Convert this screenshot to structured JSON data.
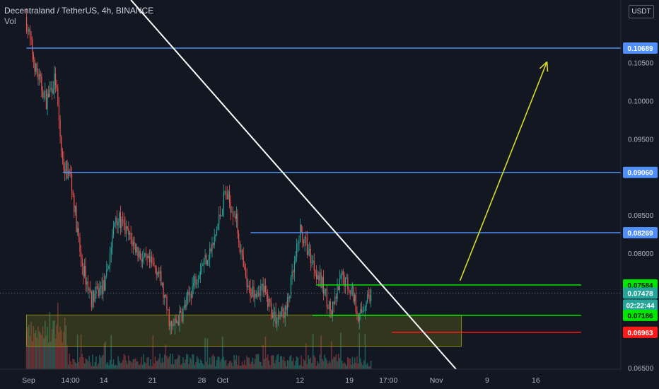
{
  "header": {
    "symbol": "Decentraland / TetherUS, 4h, BINANCE",
    "indicator": "Vol"
  },
  "currency": "USDT",
  "colors": {
    "background": "#131722",
    "up": "#26a69a",
    "down": "#ef5350",
    "blue_level": "#4f8ff7",
    "green_level": "#00e600",
    "red_level": "#ff1a1a",
    "trendline": "#ffffff",
    "projection": "#d9d926",
    "zone_fill": "#8a8a1a",
    "axis_text": "#b2b5be"
  },
  "chart_data": {
    "type": "candlestick",
    "title": "Decentraland / TetherUS, 4h, BINANCE",
    "ylim": [
      0.0622,
      0.1132
    ],
    "xlim": [
      "Sep 1",
      "Nov 20"
    ],
    "x_ticks": [
      {
        "label": "Sep",
        "day": 0.3
      },
      {
        "label": "14:00",
        "day": 6.3
      },
      {
        "label": "14",
        "day": 11.1
      },
      {
        "label": "21",
        "day": 18.1
      },
      {
        "label": "28",
        "day": 25.2
      },
      {
        "label": "Oct",
        "day": 28.2
      },
      {
        "label": "12",
        "day": 39.3
      },
      {
        "label": "19",
        "day": 46.4
      },
      {
        "label": "17:00",
        "day": 52.0
      },
      {
        "label": "Nov",
        "day": 58.9
      },
      {
        "label": "9",
        "day": 66.2
      },
      {
        "label": "16",
        "day": 73.2
      }
    ],
    "y_ticks": [
      0.065,
      0.08,
      0.085,
      0.095,
      0.1,
      0.105
    ],
    "price_levels": [
      {
        "label": "0.10689",
        "value": 0.10689,
        "color": "blue",
        "from_day": 0
      },
      {
        "label": "0.09060",
        "value": 0.0906,
        "color": "blue",
        "from_day": 5.2
      },
      {
        "label": "0.08269",
        "value": 0.08269,
        "color": "blue",
        "from_day": 32.2
      },
      {
        "label": "0.07584",
        "value": 0.07584,
        "color": "green",
        "from_day": 41.6,
        "to_day": 79.7
      },
      {
        "label": "0.07478",
        "value": 0.07478,
        "color": "teal",
        "marker": "last-price"
      },
      {
        "label": "02:22:44",
        "value": 0.0732,
        "color": "teal",
        "marker": "countdown"
      },
      {
        "label": "0.07186",
        "value": 0.07186,
        "color": "green",
        "from_day": 41.1,
        "to_day": 79.7
      },
      {
        "label": "0.06963",
        "value": 0.06963,
        "color": "red",
        "from_day": 52.5,
        "to_day": 79.7
      }
    ],
    "support_zone": {
      "y_top": 0.0719,
      "y_bottom": 0.0678,
      "from_day": 0,
      "to_day": 62.5
    },
    "trendline": {
      "from": {
        "day": 15.0,
        "y": 0.1132
      },
      "to": {
        "day": 62.5,
        "y": 0.064
      }
    },
    "projection_arrow": {
      "from": {
        "day": 62.3,
        "y": 0.0764
      },
      "to": {
        "day": 74.8,
        "y": 0.1051
      }
    },
    "price_anchors": [
      {
        "day": 0,
        "y": 0.111
      },
      {
        "day": 1.5,
        "y": 0.104
      },
      {
        "day": 3,
        "y": 0.1
      },
      {
        "day": 4.3,
        "y": 0.103
      },
      {
        "day": 5.3,
        "y": 0.092
      },
      {
        "day": 6.5,
        "y": 0.09
      },
      {
        "day": 8,
        "y": 0.079
      },
      {
        "day": 9.5,
        "y": 0.074
      },
      {
        "day": 11.5,
        "y": 0.076
      },
      {
        "day": 13,
        "y": 0.085
      },
      {
        "day": 15,
        "y": 0.082
      },
      {
        "day": 17,
        "y": 0.079
      },
      {
        "day": 19,
        "y": 0.078
      },
      {
        "day": 21,
        "y": 0.07
      },
      {
        "day": 22.5,
        "y": 0.072
      },
      {
        "day": 25,
        "y": 0.078
      },
      {
        "day": 27,
        "y": 0.081
      },
      {
        "day": 28.7,
        "y": 0.088
      },
      {
        "day": 30.2,
        "y": 0.085
      },
      {
        "day": 31.3,
        "y": 0.078
      },
      {
        "day": 32,
        "y": 0.075
      },
      {
        "day": 34,
        "y": 0.0755
      },
      {
        "day": 36,
        "y": 0.0715
      },
      {
        "day": 37.5,
        "y": 0.0725
      },
      {
        "day": 38.8,
        "y": 0.079
      },
      {
        "day": 39.5,
        "y": 0.083
      },
      {
        "day": 41,
        "y": 0.0795
      },
      {
        "day": 43,
        "y": 0.075
      },
      {
        "day": 44,
        "y": 0.072
      },
      {
        "day": 45.5,
        "y": 0.077
      },
      {
        "day": 47,
        "y": 0.075
      },
      {
        "day": 48,
        "y": 0.0715
      },
      {
        "day": 49,
        "y": 0.074
      },
      {
        "day": 49.6,
        "y": 0.0748
      }
    ]
  }
}
